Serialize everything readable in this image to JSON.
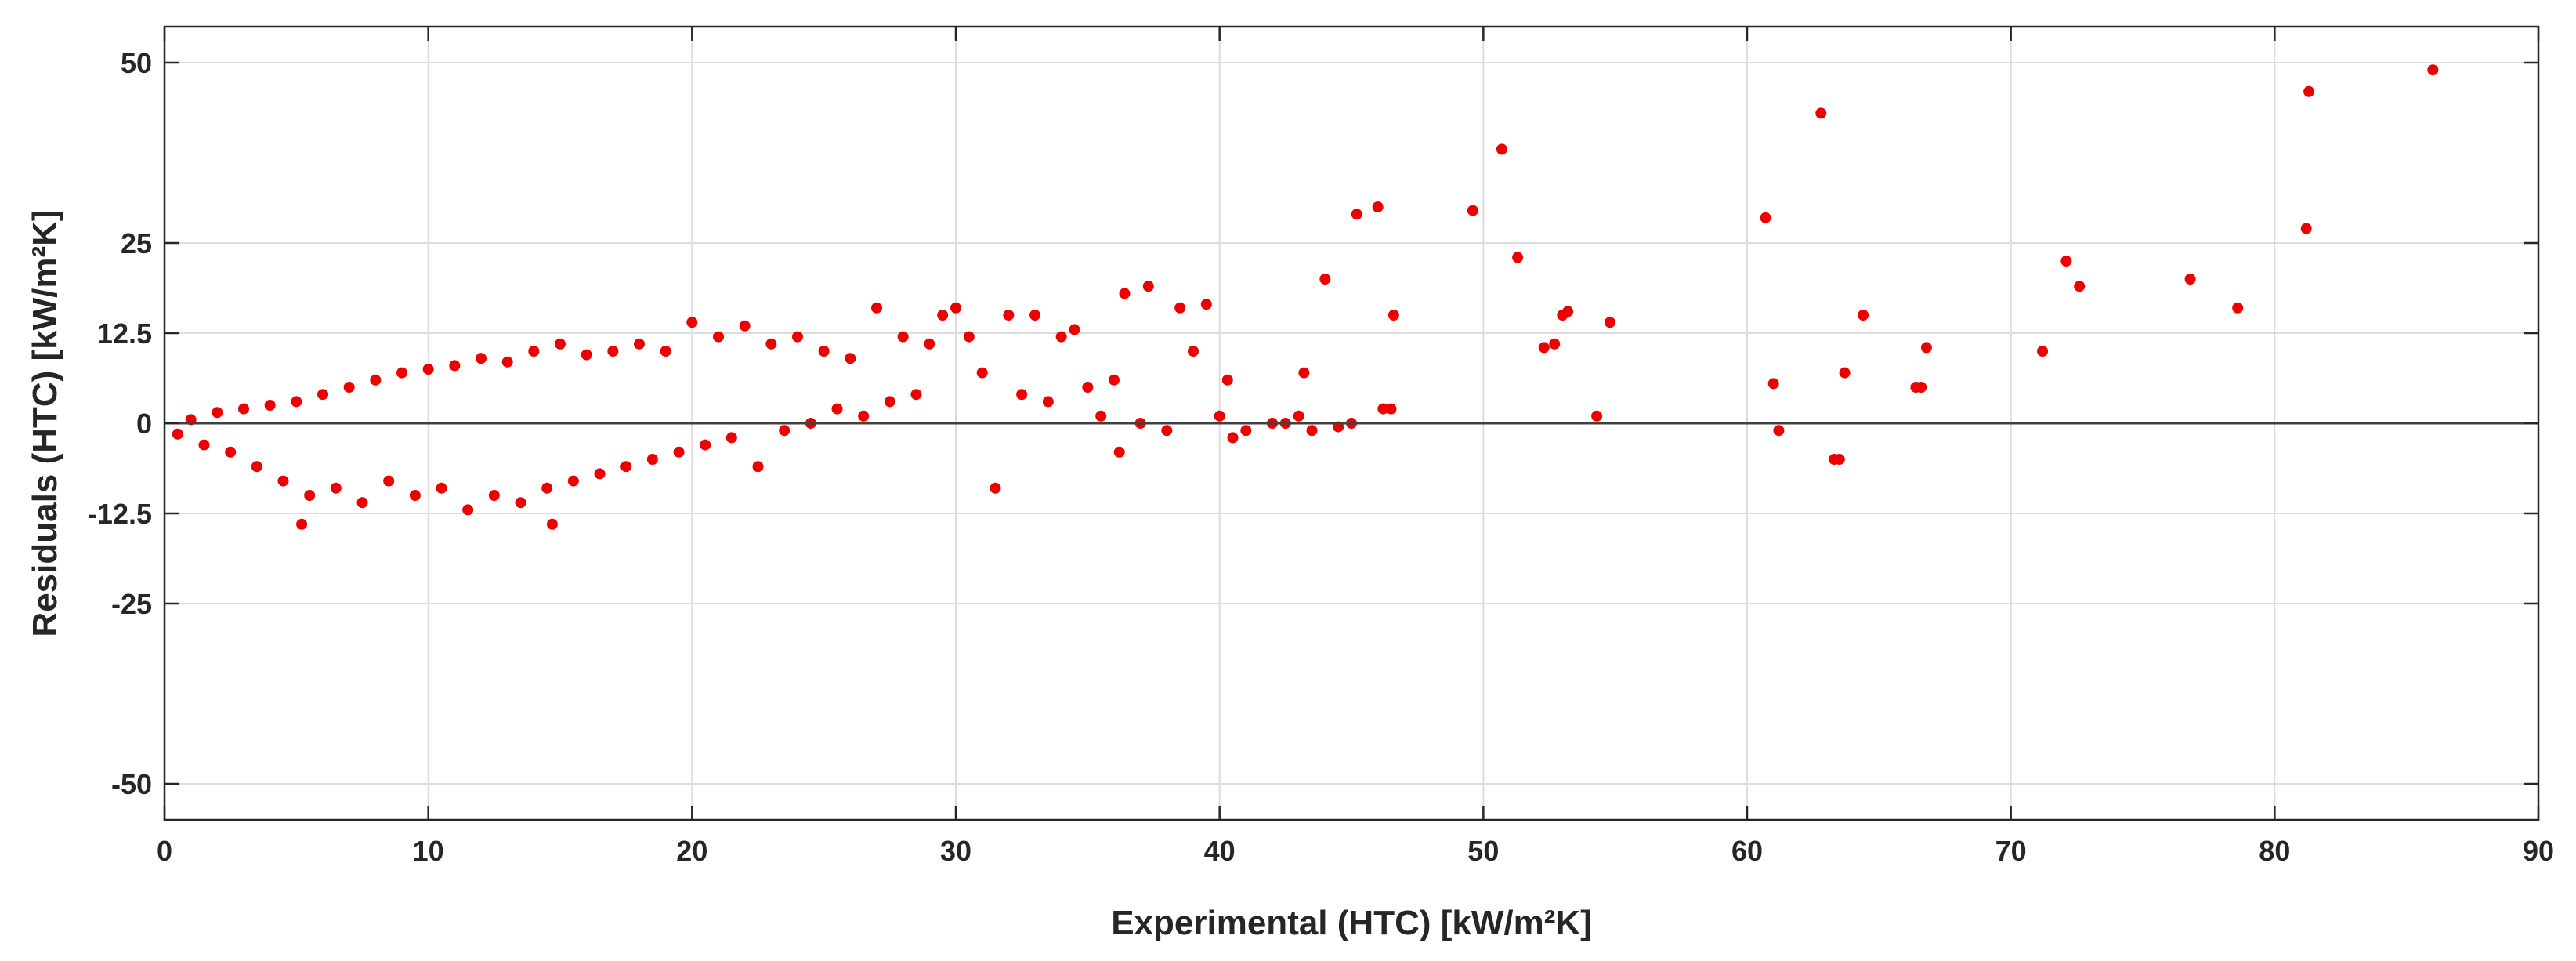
{
  "chart_data": {
    "type": "scatter",
    "xlabel": "Experimental (HTC) [kW/m²K]",
    "ylabel": "Residuals (HTC) [kW/m²K]",
    "xlim": [
      0,
      90
    ],
    "ylim": [
      -55,
      55
    ],
    "xticks": [
      0,
      10,
      20,
      30,
      40,
      50,
      60,
      70,
      80,
      90
    ],
    "yticks": [
      -50,
      -25,
      -12.5,
      0,
      12.5,
      25,
      50
    ],
    "ytick_labels": [
      "-50",
      "-25",
      "-12.5",
      "0",
      "12.5",
      "25",
      "50"
    ],
    "grid": true,
    "reference_line": {
      "y": 0,
      "color": "#404040"
    },
    "marker_color": "#ee0000",
    "series": [
      {
        "points": [
          [
            0.5,
            -1.5
          ],
          [
            1,
            0.5
          ],
          [
            1.5,
            -3
          ],
          [
            2,
            1.5
          ],
          [
            2.5,
            -4
          ],
          [
            3,
            2
          ],
          [
            3.5,
            -6
          ],
          [
            4,
            2.5
          ],
          [
            4.5,
            -8
          ],
          [
            5,
            3
          ],
          [
            5.2,
            -14
          ],
          [
            5.5,
            -10
          ],
          [
            6,
            4
          ],
          [
            6.5,
            -9
          ],
          [
            7,
            5
          ],
          [
            7.5,
            -11
          ],
          [
            8,
            6
          ],
          [
            8.5,
            -8
          ],
          [
            9,
            7
          ],
          [
            9.5,
            -10
          ],
          [
            10,
            7.5
          ],
          [
            10.5,
            -9
          ],
          [
            11,
            8
          ],
          [
            11.5,
            -12
          ],
          [
            12,
            9
          ],
          [
            12.5,
            -10
          ],
          [
            13,
            8.5
          ],
          [
            13.5,
            -11
          ],
          [
            14,
            10
          ],
          [
            14.5,
            -9
          ],
          [
            14.7,
            -14
          ],
          [
            15,
            11
          ],
          [
            15.5,
            -8
          ],
          [
            16,
            9.5
          ],
          [
            16.5,
            -7
          ],
          [
            17,
            10
          ],
          [
            17.5,
            -6
          ],
          [
            18,
            11
          ],
          [
            18.5,
            -5
          ],
          [
            19,
            10
          ],
          [
            19.5,
            -4
          ],
          [
            20,
            14
          ],
          [
            20.5,
            -3
          ],
          [
            21,
            12
          ],
          [
            21.5,
            -2
          ],
          [
            22,
            13.5
          ],
          [
            22.5,
            -6
          ],
          [
            23,
            11
          ],
          [
            23.5,
            -1
          ],
          [
            24,
            12
          ],
          [
            24.5,
            0
          ],
          [
            25,
            10
          ],
          [
            25.5,
            2
          ],
          [
            26,
            9
          ],
          [
            26.5,
            1
          ],
          [
            27,
            16
          ],
          [
            27.5,
            3
          ],
          [
            28,
            12
          ],
          [
            28.5,
            4
          ],
          [
            29,
            11
          ],
          [
            29.5,
            15
          ],
          [
            30,
            16
          ],
          [
            30.5,
            12
          ],
          [
            31,
            7
          ],
          [
            31.5,
            -9
          ],
          [
            32,
            15
          ],
          [
            32.5,
            4
          ],
          [
            33,
            15
          ],
          [
            33.5,
            3
          ],
          [
            34,
            12
          ],
          [
            34.5,
            13
          ],
          [
            35,
            5
          ],
          [
            35.5,
            1
          ],
          [
            36,
            6
          ],
          [
            36.2,
            -4
          ],
          [
            36.4,
            18
          ],
          [
            37,
            0
          ],
          [
            37.3,
            19
          ],
          [
            38,
            -1
          ],
          [
            38.5,
            16
          ],
          [
            39,
            10
          ],
          [
            39.5,
            16.5
          ],
          [
            40,
            1
          ],
          [
            40.3,
            6
          ],
          [
            40.5,
            -2
          ],
          [
            41,
            -1
          ],
          [
            42,
            0
          ],
          [
            42.5,
            0
          ],
          [
            43,
            1
          ],
          [
            43.2,
            7
          ],
          [
            43.5,
            -1
          ],
          [
            44,
            20
          ],
          [
            44.5,
            -0.5
          ],
          [
            45,
            0
          ],
          [
            45.2,
            29
          ],
          [
            46,
            30
          ],
          [
            46.2,
            2
          ],
          [
            46.5,
            2
          ],
          [
            46.6,
            15
          ],
          [
            49.6,
            29.5
          ],
          [
            50.7,
            38
          ],
          [
            51.3,
            23
          ],
          [
            52.3,
            10.5
          ],
          [
            52.7,
            11
          ],
          [
            53,
            15
          ],
          [
            53.2,
            15.5
          ],
          [
            54.3,
            1
          ],
          [
            54.8,
            14
          ],
          [
            60.7,
            28.5
          ],
          [
            61,
            5.5
          ],
          [
            61.2,
            -1
          ],
          [
            62.8,
            43
          ],
          [
            63.3,
            -5
          ],
          [
            63.5,
            -5
          ],
          [
            63.7,
            7
          ],
          [
            64.4,
            15
          ],
          [
            66.4,
            5
          ],
          [
            66.6,
            5
          ],
          [
            66.8,
            10.5
          ],
          [
            71.2,
            10
          ],
          [
            72.1,
            22.5
          ],
          [
            72.6,
            19
          ],
          [
            76.8,
            20
          ],
          [
            78.6,
            16
          ],
          [
            81.2,
            27
          ],
          [
            81.3,
            46
          ],
          [
            86,
            49
          ]
        ]
      }
    ]
  }
}
